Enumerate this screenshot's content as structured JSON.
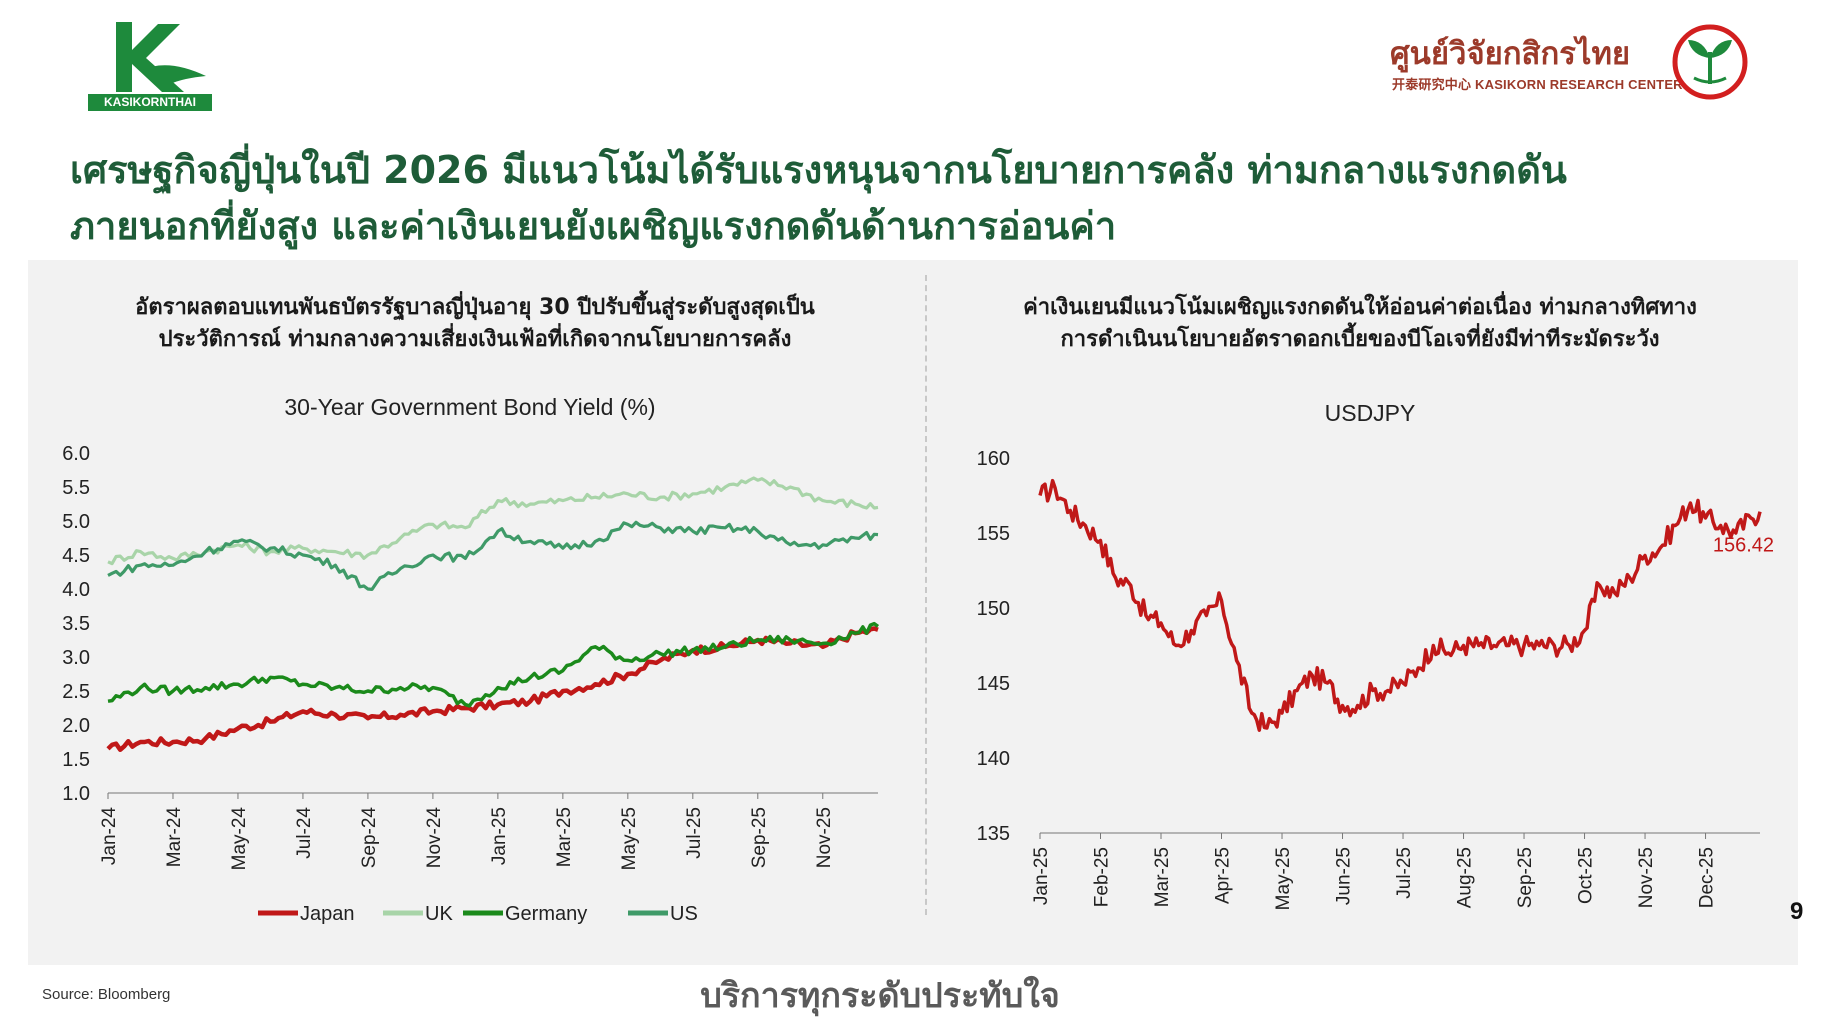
{
  "header": {
    "headline_line1": "เศรษฐกิจญี่ปุ่นในปี 2026 มีแนวโน้มได้รับแรงหนุนจากนโยบายการคลัง ท่ามกลางแรงกดดัน",
    "headline_line2": "ภายนอกที่ยังสูง และค่าเงินเยนยังเผชิญแรงกดดันด้านการอ่อนค่า",
    "kbank_caption": "KASIKORNTHAI",
    "krc_thai": "ศูนย์วิจัยกสิกรไทย",
    "krc_sub": "开泰研究中心 KASIKORN RESEARCH CENTER"
  },
  "left_panel": {
    "subheading_line1": "อัตราผลตอบแทนพันธบัตรรัฐบาลญี่ปุ่นอายุ 30 ปีปรับขึ้นสู่ระดับสูงสุดเป็น",
    "subheading_line2": "ประวัติการณ์ ท่ามกลางความเสี่ยงเงินเฟ้อที่เกิดจากนโยบายการคลัง"
  },
  "right_panel": {
    "subheading_line1": "ค่าเงินเยนมีแนวโน้มเผชิญแรงกดดันให้อ่อนค่าต่อเนื่อง ท่ามกลางทิศทาง",
    "subheading_line2": "การดำเนินนโยบายอัตราดอกเบี้ยของบีโอเจที่ยังมีท่าทีระมัดระวัง"
  },
  "footer": {
    "source": "Source: Bloomberg",
    "tagline": "บริการทุกระดับประทับใจ",
    "page_number": "9"
  },
  "colors": {
    "japan": "#c01818",
    "uk": "#a8d4a8",
    "germany": "#1b8a1b",
    "us": "#3f9a68",
    "usdjpy": "#c01818",
    "headline": "#1e5c38",
    "panel_bg": "#f2f2f2"
  },
  "chart_data": [
    {
      "id": "bond",
      "type": "line",
      "title": "30-Year Government Bond Yield (%)",
      "x_labels": [
        "Jan-24",
        "Mar-24",
        "May-24",
        "Jul-24",
        "Sep-24",
        "Nov-24",
        "Jan-25",
        "Mar-25",
        "May-25",
        "Jul-25",
        "Sep-25",
        "Nov-25"
      ],
      "x_tick_months": [
        0,
        2,
        4,
        6,
        8,
        10,
        12,
        14,
        16,
        18,
        20,
        22
      ],
      "x_range": [
        0,
        23.7
      ],
      "y_ticks": [
        "6.0",
        "5.5",
        "5.0",
        "4.5",
        "4.0",
        "3.5",
        "3.0",
        "2.5",
        "2.0",
        "1.5",
        "1.0"
      ],
      "ylim": [
        1.0,
        6.0
      ],
      "legend_position": "bottom",
      "grid": false,
      "series": [
        {
          "name": "Japan",
          "key": "japan",
          "values": [
            [
              0,
              1.65
            ],
            [
              1,
              1.75
            ],
            [
              2,
              1.75
            ],
            [
              3,
              1.8
            ],
            [
              4,
              1.95
            ],
            [
              5,
              2.05
            ],
            [
              6,
              2.2
            ],
            [
              7,
              2.15
            ],
            [
              8,
              2.1
            ],
            [
              9,
              2.15
            ],
            [
              10,
              2.2
            ],
            [
              11,
              2.25
            ],
            [
              12,
              2.3
            ],
            [
              13,
              2.35
            ],
            [
              14,
              2.5
            ],
            [
              15,
              2.6
            ],
            [
              16,
              2.75
            ],
            [
              17,
              2.95
            ],
            [
              18,
              3.1
            ],
            [
              19,
              3.15
            ],
            [
              20,
              3.25
            ],
            [
              21,
              3.2
            ],
            [
              22,
              3.15
            ],
            [
              23,
              3.35
            ],
            [
              23.7,
              3.4
            ]
          ]
        },
        {
          "name": "UK",
          "key": "uk",
          "values": [
            [
              0,
              4.4
            ],
            [
              1,
              4.55
            ],
            [
              2,
              4.45
            ],
            [
              3,
              4.55
            ],
            [
              4,
              4.65
            ],
            [
              5,
              4.55
            ],
            [
              6,
              4.6
            ],
            [
              7,
              4.55
            ],
            [
              8,
              4.5
            ],
            [
              9,
              4.75
            ],
            [
              10,
              4.95
            ],
            [
              11,
              4.9
            ],
            [
              12,
              5.3
            ],
            [
              13,
              5.25
            ],
            [
              14,
              5.3
            ],
            [
              15,
              5.35
            ],
            [
              16,
              5.4
            ],
            [
              17,
              5.35
            ],
            [
              18,
              5.4
            ],
            [
              19,
              5.5
            ],
            [
              20,
              5.6
            ],
            [
              21,
              5.5
            ],
            [
              22,
              5.3
            ],
            [
              23,
              5.25
            ],
            [
              23.7,
              5.2
            ]
          ]
        },
        {
          "name": "Germany",
          "key": "germany",
          "values": [
            [
              0,
              2.35
            ],
            [
              1,
              2.55
            ],
            [
              2,
              2.5
            ],
            [
              3,
              2.55
            ],
            [
              4,
              2.6
            ],
            [
              5,
              2.7
            ],
            [
              6,
              2.6
            ],
            [
              7,
              2.55
            ],
            [
              8,
              2.5
            ],
            [
              9,
              2.55
            ],
            [
              10,
              2.55
            ],
            [
              11,
              2.3
            ],
            [
              12,
              2.55
            ],
            [
              13,
              2.7
            ],
            [
              14,
              2.8
            ],
            [
              15,
              3.15
            ],
            [
              16,
              2.95
            ],
            [
              17,
              3.05
            ],
            [
              18,
              3.1
            ],
            [
              19,
              3.15
            ],
            [
              20,
              3.25
            ],
            [
              21,
              3.25
            ],
            [
              22,
              3.2
            ],
            [
              23,
              3.35
            ],
            [
              23.7,
              3.45
            ]
          ]
        },
        {
          "name": "US",
          "key": "us",
          "values": [
            [
              0,
              4.2
            ],
            [
              1,
              4.35
            ],
            [
              2,
              4.35
            ],
            [
              3,
              4.55
            ],
            [
              4,
              4.7
            ],
            [
              5,
              4.6
            ],
            [
              6,
              4.5
            ],
            [
              7,
              4.35
            ],
            [
              8,
              4.0
            ],
            [
              9,
              4.3
            ],
            [
              10,
              4.5
            ],
            [
              11,
              4.45
            ],
            [
              12,
              4.85
            ],
            [
              13,
              4.7
            ],
            [
              14,
              4.6
            ],
            [
              15,
              4.7
            ],
            [
              16,
              4.95
            ],
            [
              17,
              4.9
            ],
            [
              18,
              4.85
            ],
            [
              19,
              4.9
            ],
            [
              20,
              4.85
            ],
            [
              21,
              4.65
            ],
            [
              22,
              4.65
            ],
            [
              23,
              4.75
            ],
            [
              23.7,
              4.8
            ]
          ]
        }
      ]
    },
    {
      "id": "usdjpy",
      "type": "line",
      "title": "USDJPY",
      "x_labels": [
        "Jan-25",
        "Feb-25",
        "Mar-25",
        "Apr-25",
        "May-25",
        "Jun-25",
        "Jul-25",
        "Aug-25",
        "Sep-25",
        "Oct-25",
        "Nov-25",
        "Dec-25"
      ],
      "x_tick_months": [
        0,
        1,
        2,
        3,
        4,
        5,
        6,
        7,
        8,
        9,
        10,
        11
      ],
      "x_range": [
        0,
        11.9
      ],
      "y_ticks": [
        "160",
        "155",
        "150",
        "145",
        "140",
        "135"
      ],
      "ylim": [
        135,
        160
      ],
      "grid": false,
      "annotation": {
        "text": "156.42",
        "x": 11.9,
        "y": 156.42
      },
      "series": [
        {
          "name": "USDJPY",
          "key": "usdjpy",
          "values": [
            [
              0,
              157.5
            ],
            [
              0.25,
              158
            ],
            [
              0.5,
              156.5
            ],
            [
              0.75,
              155.5
            ],
            [
              1,
              154.5
            ],
            [
              1.25,
              152
            ],
            [
              1.5,
              151.5
            ],
            [
              1.75,
              149.5
            ],
            [
              2,
              149
            ],
            [
              2.25,
              147.5
            ],
            [
              2.5,
              148.5
            ],
            [
              2.75,
              149.5
            ],
            [
              3,
              150.5
            ],
            [
              3.25,
              146.5
            ],
            [
              3.5,
              143
            ],
            [
              3.75,
              142
            ],
            [
              4,
              143
            ],
            [
              4.25,
              144.5
            ],
            [
              4.5,
              145.5
            ],
            [
              4.75,
              145
            ],
            [
              5,
              143.5
            ],
            [
              5.25,
              143.5
            ],
            [
              5.5,
              144.5
            ],
            [
              5.75,
              144.5
            ],
            [
              6,
              145
            ],
            [
              6.25,
              146
            ],
            [
              6.5,
              147.5
            ],
            [
              6.75,
              147
            ],
            [
              7,
              147.5
            ],
            [
              7.25,
              147.5
            ],
            [
              7.5,
              147.5
            ],
            [
              7.75,
              147.5
            ],
            [
              8,
              147.5
            ],
            [
              8.25,
              147.5
            ],
            [
              8.5,
              147.5
            ],
            [
              8.75,
              147.5
            ],
            [
              9,
              148.5
            ],
            [
              9.25,
              151.5
            ],
            [
              9.5,
              151
            ],
            [
              9.75,
              152
            ],
            [
              10,
              153.5
            ],
            [
              10.25,
              154
            ],
            [
              10.5,
              155.5
            ],
            [
              10.75,
              157
            ],
            [
              11,
              156
            ],
            [
              11.25,
              155.5
            ],
            [
              11.5,
              155
            ],
            [
              11.75,
              156
            ],
            [
              11.9,
              156.42
            ]
          ]
        }
      ]
    }
  ]
}
